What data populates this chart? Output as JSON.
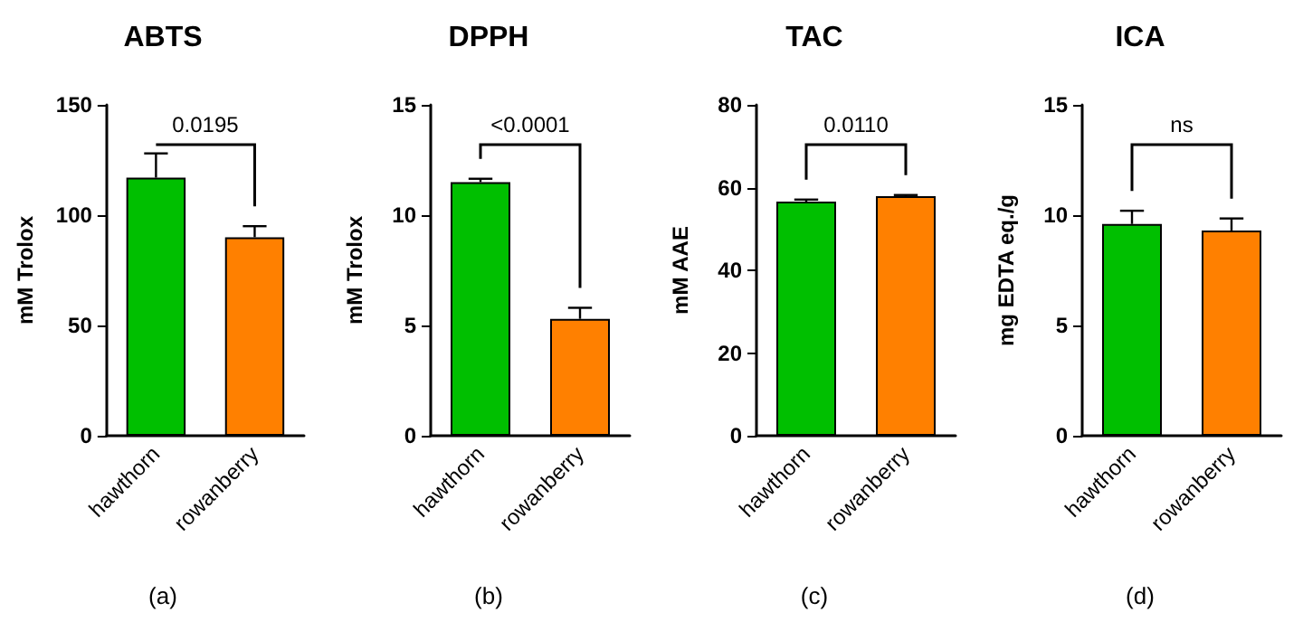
{
  "chart_data": [
    {
      "type": "bar",
      "title": "ABTS",
      "ylabel": "mM Trolox",
      "categories": [
        "hawthorn",
        "rowanberry"
      ],
      "values": [
        117,
        90
      ],
      "errors": [
        11,
        5
      ],
      "colors": [
        "#00bf00",
        "#ff8000"
      ],
      "ylim": [
        0,
        150
      ],
      "yticks": [
        0,
        50,
        100,
        150
      ],
      "annotations": [
        "0.0195",
        "(a)"
      ]
    },
    {
      "type": "bar",
      "title": "DPPH",
      "ylabel": "mM Trolox",
      "categories": [
        "hawthorn",
        "rowanberry"
      ],
      "values": [
        11.5,
        5.3
      ],
      "errors": [
        0.15,
        0.5
      ],
      "colors": [
        "#00bf00",
        "#ff8000"
      ],
      "ylim": [
        0,
        15
      ],
      "yticks": [
        0,
        5,
        10,
        15
      ],
      "annotations": [
        "<0.0001",
        "(b)"
      ]
    },
    {
      "type": "bar",
      "title": "TAC",
      "ylabel": "mM AAE",
      "categories": [
        "hawthorn",
        "rowanberry"
      ],
      "values": [
        56.6,
        57.9
      ],
      "errors": [
        0.5,
        0.3
      ],
      "colors": [
        "#00bf00",
        "#ff8000"
      ],
      "ylim": [
        0,
        80
      ],
      "yticks": [
        0,
        20,
        40,
        60,
        80
      ],
      "annotations": [
        "0.0110",
        "(c)"
      ]
    },
    {
      "type": "bar",
      "title": "ICA",
      "ylabel": "mg EDTA eq./g",
      "categories": [
        "hawthorn",
        "rowanberry"
      ],
      "values": [
        9.6,
        9.3
      ],
      "errors": [
        0.6,
        0.55
      ],
      "colors": [
        "#00bf00",
        "#ff8000"
      ],
      "ylim": [
        0,
        15
      ],
      "yticks": [
        0,
        5,
        10,
        15
      ],
      "annotations": [
        "ns",
        "(d)"
      ]
    }
  ]
}
